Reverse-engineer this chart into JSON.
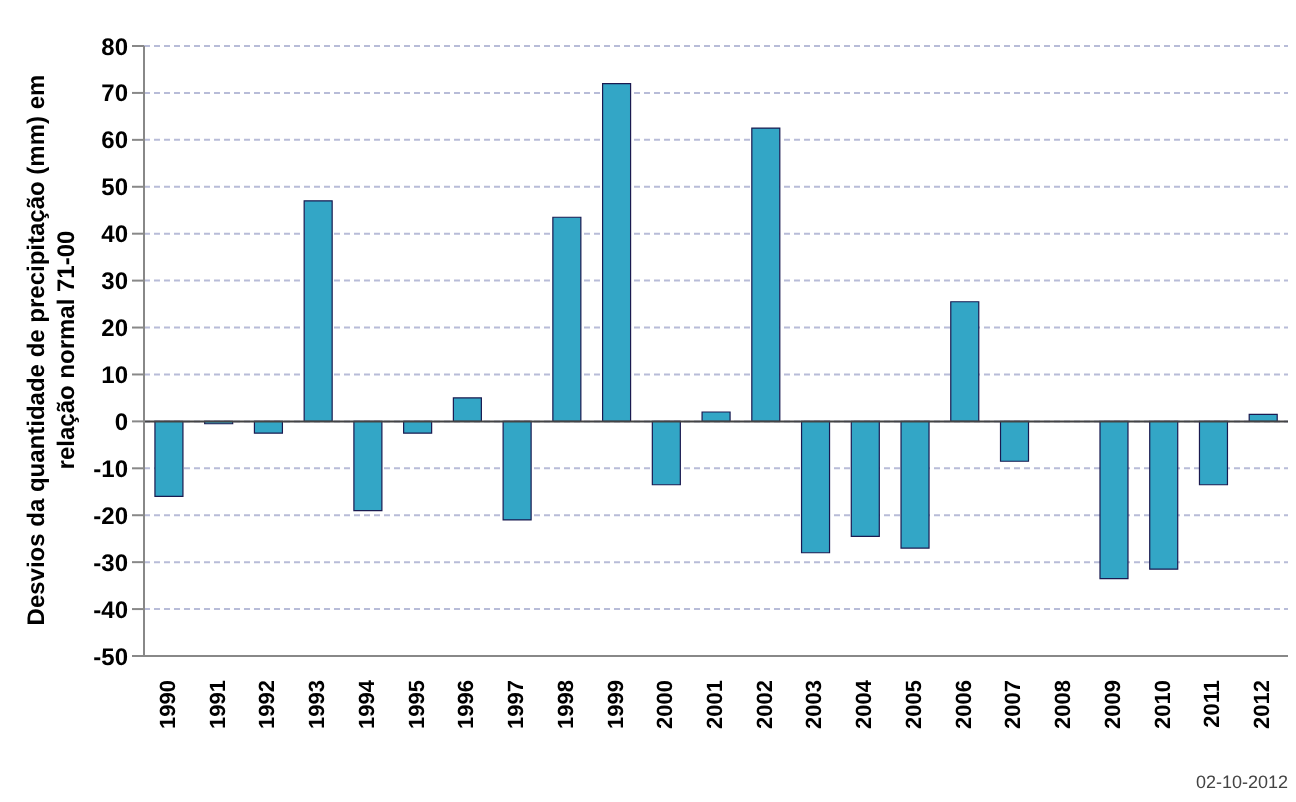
{
  "chart_data": {
    "type": "bar",
    "ylabel": "Desvios da quantidade de precipitação (mm) em relação normal 71-00",
    "categories": [
      "1990",
      "1991",
      "1992",
      "1993",
      "1994",
      "1995",
      "1996",
      "1997",
      "1998",
      "1999",
      "2000",
      "2001",
      "2002",
      "2003",
      "2004",
      "2005",
      "2006",
      "2007",
      "2008",
      "2009",
      "2010",
      "2011",
      "2012"
    ],
    "values": [
      -16,
      -0.5,
      -2.5,
      47,
      -19,
      -2.5,
      5,
      -21,
      43.5,
      72,
      -13.5,
      2,
      62.5,
      -28,
      -24.5,
      -27,
      25.5,
      -8.5,
      0,
      -33.5,
      -31.5,
      -13.5,
      1.5
    ],
    "color": "#33a6c6",
    "ylim": [
      -50,
      80
    ],
    "yticks": [
      -50,
      -40,
      -30,
      -20,
      -10,
      0,
      10,
      20,
      30,
      40,
      50,
      60,
      70,
      80
    ],
    "grid": "y",
    "annotations": [
      "02-10-2012"
    ]
  }
}
